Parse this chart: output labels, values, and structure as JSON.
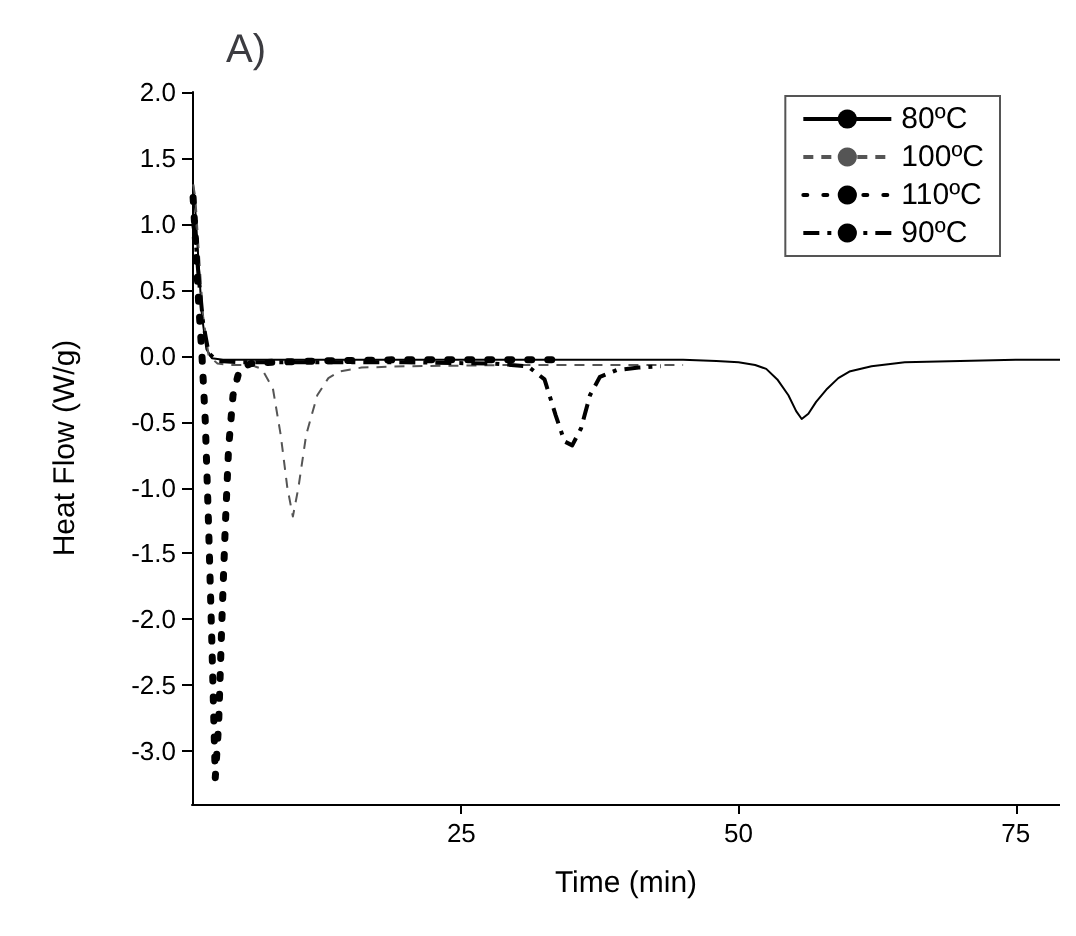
{
  "chart_data": {
    "type": "line",
    "title": "A)",
    "xlabel": "Time (min)",
    "ylabel": "Heat Flow (W/g)",
    "xlim": [
      0.7,
      79
    ],
    "xticks": [
      25,
      50,
      75
    ],
    "ylim": [
      -3.4,
      2.0
    ],
    "yticks": [
      {
        "value": 2,
        "label": "2.0"
      },
      {
        "value": 1.5,
        "label": "1.5"
      },
      {
        "value": 1,
        "label": "1.0"
      },
      {
        "value": 0.5,
        "label": "0.5"
      },
      {
        "value": 0,
        "label": "0.0"
      },
      {
        "value": -0.5,
        "label": "-0.5"
      },
      {
        "value": -1,
        "label": "-1.0"
      },
      {
        "value": -1.5,
        "label": "-1.5"
      },
      {
        "value": -2,
        "label": "-2.0"
      },
      {
        "value": -2.5,
        "label": "-2.5"
      },
      {
        "value": -3,
        "label": "-3.0"
      }
    ],
    "grid": false,
    "legend": "top right",
    "marker": "none",
    "series": [
      {
        "name": "80ºC",
        "color": "#000000",
        "line_style": "solid",
        "x": [
          0.8,
          1.0,
          1.3,
          1.6,
          2.0,
          2.5,
          3.5,
          10,
          20,
          30,
          40,
          45,
          48,
          50,
          51.5,
          52.5,
          53.5,
          54.5,
          55.2,
          55.7,
          56.3,
          57,
          58,
          59,
          60,
          62,
          65,
          70,
          75,
          79
        ],
        "values": [
          1.3,
          1.1,
          0.7,
          0.3,
          0.05,
          -0.02,
          -0.03,
          -0.03,
          -0.03,
          -0.03,
          -0.03,
          -0.03,
          -0.04,
          -0.05,
          -0.07,
          -0.1,
          -0.18,
          -0.3,
          -0.42,
          -0.48,
          -0.44,
          -0.35,
          -0.25,
          -0.17,
          -0.12,
          -0.08,
          -0.05,
          -0.04,
          -0.03,
          -0.03
        ]
      },
      {
        "name": "100ºC",
        "color": "#555555",
        "line_style": "dashed",
        "x": [
          0.8,
          1.0,
          1.3,
          1.7,
          2.2,
          3,
          4,
          6,
          7,
          8,
          8.7,
          9.3,
          9.8,
          10.3,
          11,
          12,
          13,
          14,
          16,
          20,
          30,
          40,
          45
        ],
        "values": [
          1.3,
          1.2,
          0.8,
          0.3,
          0,
          -0.06,
          -0.07,
          -0.07,
          -0.1,
          -0.25,
          -0.6,
          -1.0,
          -1.22,
          -1.0,
          -0.6,
          -0.3,
          -0.17,
          -0.12,
          -0.09,
          -0.08,
          -0.07,
          -0.07,
          -0.07
        ]
      },
      {
        "name": "110ºC",
        "color": "#000000",
        "line_style": "dotted",
        "x": [
          0.8,
          1.0,
          1.3,
          1.6,
          1.9,
          2.2,
          2.5,
          2.8,
          3.1,
          3.4,
          3.7,
          4.0,
          4.4,
          5,
          6,
          8,
          12,
          20,
          30,
          34
        ],
        "values": [
          1.2,
          0.9,
          0.4,
          0,
          -0.5,
          -1.3,
          -2.2,
          -3.2,
          -2.8,
          -2.0,
          -1.3,
          -0.7,
          -0.3,
          -0.1,
          -0.06,
          -0.05,
          -0.04,
          -0.03,
          -0.03,
          -0.03
        ]
      },
      {
        "name": "90ºC",
        "color": "#000000",
        "line_style": "dashdot",
        "x": [
          0.8,
          1.0,
          1.3,
          1.7,
          2.2,
          3,
          5,
          10,
          20,
          28,
          31,
          32.5,
          33.5,
          34.3,
          35,
          35.8,
          36.6,
          37.5,
          39,
          41,
          43
        ],
        "values": [
          1.0,
          0.9,
          0.6,
          0.25,
          0.02,
          -0.04,
          -0.05,
          -0.05,
          -0.05,
          -0.06,
          -0.08,
          -0.18,
          -0.45,
          -0.65,
          -0.68,
          -0.55,
          -0.3,
          -0.16,
          -0.11,
          -0.09,
          -0.08
        ]
      }
    ]
  }
}
